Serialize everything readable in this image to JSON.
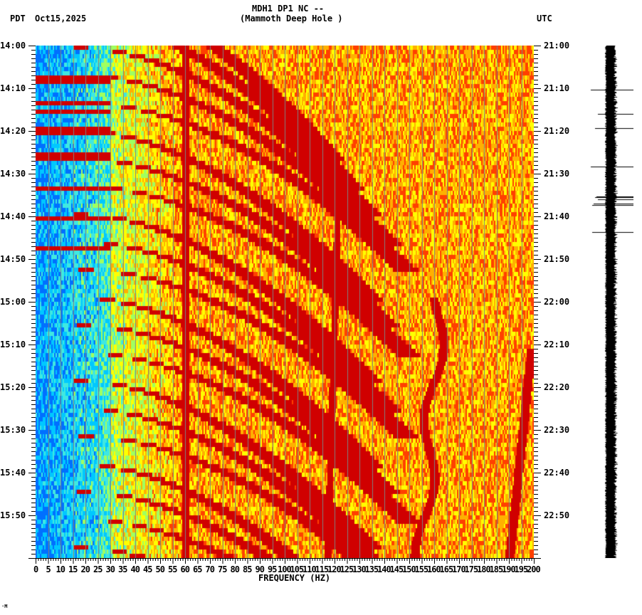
{
  "header": {
    "station_line": "MDH1 DP1 NC --",
    "station_name": "(Mammoth Deep Hole )",
    "left_timezone": "PDT",
    "date": "Oct15,2025",
    "right_timezone": "UTC"
  },
  "footer_mark": "·M",
  "chart_data": {
    "type": "heatmap",
    "title": "MDH1 DP1 NC -- (Mammoth Deep Hole ) spectrogram",
    "xlabel": "FREQUENCY (HZ)",
    "ylabel_left": "PDT",
    "ylabel_right": "UTC",
    "xlim": [
      0,
      200
    ],
    "x_ticks": [
      0,
      5,
      10,
      15,
      20,
      25,
      30,
      35,
      40,
      45,
      50,
      55,
      60,
      65,
      70,
      75,
      80,
      85,
      90,
      95,
      100,
      105,
      110,
      115,
      120,
      125,
      130,
      135,
      140,
      145,
      150,
      155,
      160,
      165,
      170,
      175,
      180,
      185,
      190,
      195,
      200
    ],
    "x_tick_labels": [
      "0",
      "5",
      "10",
      "15",
      "20",
      "25",
      "30",
      "35",
      "40",
      "45",
      "50",
      "55",
      "60",
      "65",
      "70",
      "75",
      "80",
      "85",
      "90",
      "95",
      "100",
      "105",
      "110",
      "115",
      "120",
      "125",
      "130",
      "135",
      "140",
      "145",
      "150",
      "155",
      "160",
      "165",
      "170",
      "175",
      "180",
      "185",
      "190",
      "195",
      "200"
    ],
    "y_ticks_left": [
      "14:00",
      "14:10",
      "14:20",
      "14:30",
      "14:40",
      "14:50",
      "15:00",
      "15:10",
      "15:20",
      "15:30",
      "15:40",
      "15:50"
    ],
    "y_ticks_right": [
      "21:00",
      "21:10",
      "21:20",
      "21:30",
      "21:40",
      "21:50",
      "22:00",
      "22:10",
      "22:20",
      "22:30",
      "22:40",
      "22:50"
    ],
    "time_range_minutes": 120,
    "minor_tick_minutes": 1,
    "grid": {
      "vertical_every_hz": 5,
      "color": "#808080"
    },
    "colormap": [
      "#0070ff",
      "#00c8ff",
      "#40e8e0",
      "#a0ff60",
      "#ffff00",
      "#ffb000",
      "#ff4000",
      "#d00000",
      "#800000"
    ],
    "persistent_lines_hz": [
      60,
      120
    ],
    "features": [
      {
        "name": "low-freq quiet band",
        "hz_range": [
          0,
          35
        ],
        "level": "low (blue/cyan)"
      },
      {
        "name": "recurring curved harmonic sweeps",
        "period_minutes": 6.5,
        "start_hz": 20,
        "end_hz": 150,
        "level": "high (dark red)"
      },
      {
        "name": "horizontal broadband bursts",
        "times": [
          "14:09",
          "14:13",
          "14:16",
          "14:20",
          "14:22",
          "14:27",
          "14:35",
          "14:44",
          "14:51"
        ]
      },
      {
        "name": "wandering tremor line",
        "start_time": "14:58",
        "start_hz": 162,
        "end_time": "15:59",
        "end_hz": 155
      },
      {
        "name": "second tremor line",
        "start_time": "15:10",
        "start_hz": 199,
        "end_time": "15:59",
        "end_hz": 190
      }
    ]
  },
  "seismogram": {
    "spikes_y": [
      62,
      116,
      96,
      170,
      224,
      222,
      224,
      212,
      262,
      215,
      213,
      219,
      214,
      216,
      262
    ]
  }
}
